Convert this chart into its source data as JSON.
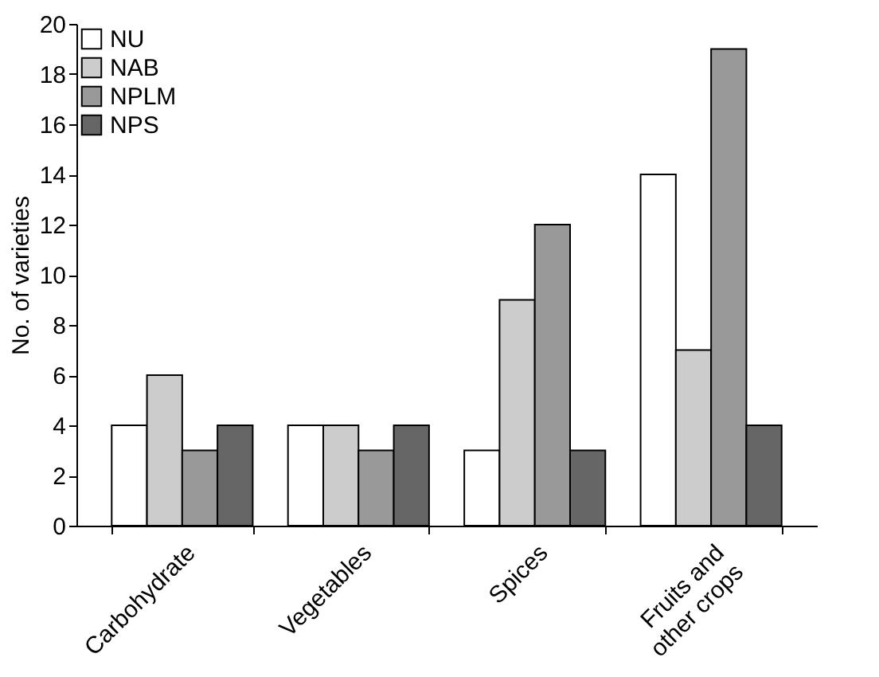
{
  "chart_data": {
    "type": "bar",
    "ylabel": "No. of varieties",
    "categories": [
      "Carbohydrate",
      "Vegetables",
      "Spices",
      "Fruits and\nother crops"
    ],
    "series": [
      {
        "name": "NU",
        "color": "#ffffff",
        "values": [
          4,
          4,
          3,
          14
        ]
      },
      {
        "name": "NAB",
        "color": "#cccccc",
        "values": [
          6,
          4,
          9,
          7
        ]
      },
      {
        "name": "NPLM",
        "color": "#999999",
        "values": [
          3,
          3,
          12,
          19
        ]
      },
      {
        "name": "NPS",
        "color": "#666666",
        "values": [
          4,
          4,
          3,
          4
        ]
      }
    ],
    "ylim": [
      0,
      20
    ],
    "yticks": [
      0,
      2,
      4,
      6,
      8,
      10,
      12,
      14,
      16,
      18,
      20
    ],
    "grid": false,
    "legend": "top left"
  }
}
